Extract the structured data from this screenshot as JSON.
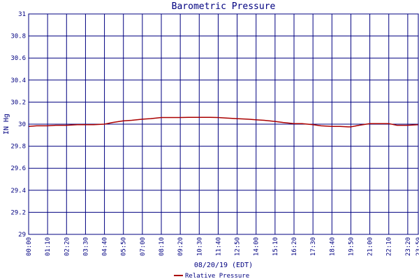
{
  "chart_data": {
    "type": "line",
    "title": "Barometric Pressure",
    "xlabel": "08/20/19 (EDT)",
    "ylabel": "IN Hg",
    "ylim": [
      29,
      31
    ],
    "yticks": [
      "29",
      "29.2",
      "29.4",
      "29.6",
      "29.8",
      "30",
      "30.2",
      "30.4",
      "30.6",
      "30.8",
      "31"
    ],
    "xticks": [
      "00:00",
      "01:10",
      "02:20",
      "03:30",
      "04:40",
      "05:50",
      "07:00",
      "08:10",
      "09:20",
      "10:30",
      "11:40",
      "12:50",
      "14:00",
      "15:10",
      "16:20",
      "17:30",
      "18:40",
      "19:50",
      "21:00",
      "22:10",
      "23:20",
      "23:59"
    ],
    "grid": true,
    "legend_position": "bottom-center",
    "colors": {
      "line": "#aa0000",
      "grid": "#000080",
      "text": "#000080"
    },
    "series": [
      {
        "name": "Relative Pressure",
        "x": [
          "00:00",
          "00:30",
          "01:10",
          "01:40",
          "02:20",
          "03:00",
          "03:30",
          "04:00",
          "04:40",
          "05:10",
          "05:50",
          "06:20",
          "07:00",
          "07:30",
          "08:10",
          "08:30",
          "09:20",
          "09:50",
          "10:30",
          "11:10",
          "11:40",
          "12:10",
          "12:50",
          "13:30",
          "14:00",
          "14:30",
          "15:10",
          "15:40",
          "16:20",
          "16:50",
          "17:30",
          "18:00",
          "18:40",
          "19:10",
          "19:40",
          "19:50",
          "20:20",
          "21:00",
          "21:30",
          "22:10",
          "22:40",
          "23:20",
          "23:59"
        ],
        "y": [
          29.98,
          29.985,
          29.985,
          29.99,
          29.99,
          29.995,
          29.995,
          29.995,
          30.0,
          30.015,
          30.03,
          30.035,
          30.045,
          30.05,
          30.06,
          30.06,
          30.06,
          30.062,
          30.062,
          30.062,
          30.06,
          30.055,
          30.05,
          30.045,
          30.04,
          30.035,
          30.025,
          30.015,
          30.005,
          30.005,
          29.995,
          29.985,
          29.98,
          29.98,
          29.975,
          29.975,
          29.99,
          30.005,
          30.005,
          30.005,
          29.99,
          29.99,
          29.995
        ]
      }
    ]
  }
}
